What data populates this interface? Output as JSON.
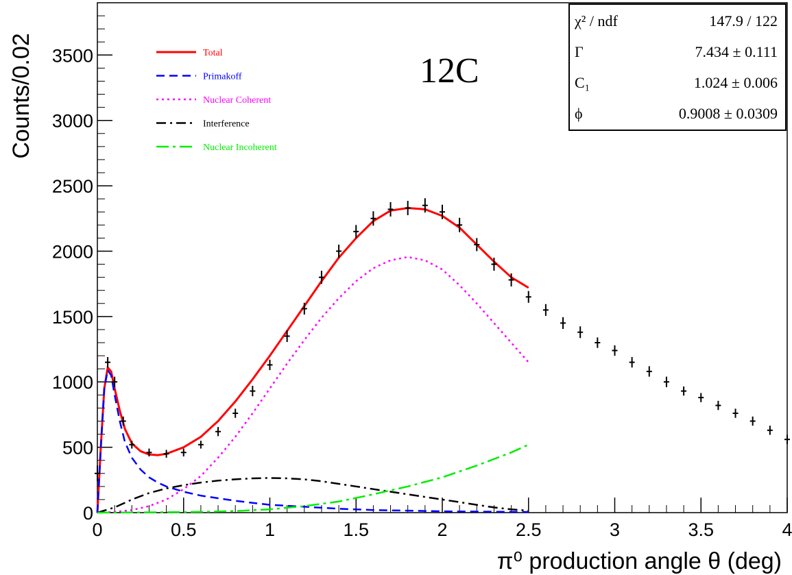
{
  "chart_data": {
    "type": "line",
    "xlabel": "π⁰ production angle θ (deg)",
    "ylabel": "Counts/0.02",
    "xlim": [
      0,
      4
    ],
    "ylim": [
      0,
      3900
    ],
    "x_ticks": [
      "0",
      "0.5",
      "1",
      "1.5",
      "2",
      "2.5",
      "3",
      "3.5",
      "4"
    ],
    "y_ticks": [
      "0",
      "500",
      "1000",
      "1500",
      "2000",
      "2500",
      "3000",
      "3500"
    ],
    "annotation": "12C",
    "legend_position": "top-left",
    "stats": [
      {
        "label": "χ² / ndf",
        "value": "147.9 / 122"
      },
      {
        "label": "Γ",
        "value": "7.434 ± 0.111"
      },
      {
        "label": "C₁",
        "value": "1.024 ± 0.006"
      },
      {
        "label": "ϕ",
        "value": "0.9008 ± 0.0309"
      }
    ],
    "data_points": {
      "name": "Data",
      "x": [
        0.0,
        0.06,
        0.1,
        0.15,
        0.2,
        0.3,
        0.4,
        0.5,
        0.6,
        0.7,
        0.8,
        0.9,
        1.0,
        1.1,
        1.2,
        1.3,
        1.4,
        1.5,
        1.6,
        1.7,
        1.8,
        1.9,
        2.0,
        2.1,
        2.2,
        2.3,
        2.4,
        2.5,
        2.6,
        2.7,
        2.8,
        2.9,
        3.0,
        3.1,
        3.2,
        3.3,
        3.4,
        3.5,
        3.6,
        3.7,
        3.8,
        3.9,
        4.0
      ],
      "y": [
        300,
        1150,
        1000,
        700,
        520,
        460,
        450,
        460,
        520,
        620,
        760,
        930,
        1130,
        1350,
        1560,
        1800,
        2000,
        2150,
        2250,
        2320,
        2330,
        2350,
        2300,
        2200,
        2050,
        1900,
        1780,
        1650,
        1550,
        1450,
        1380,
        1300,
        1240,
        1150,
        1080,
        1000,
        930,
        880,
        820,
        760,
        700,
        630,
        560
      ],
      "err": [
        60,
        40,
        40,
        35,
        30,
        30,
        30,
        30,
        30,
        35,
        35,
        40,
        40,
        45,
        45,
        50,
        50,
        50,
        55,
        55,
        55,
        55,
        55,
        55,
        50,
        50,
        50,
        45,
        45,
        45,
        45,
        40,
        40,
        40,
        40,
        40,
        35,
        35,
        35,
        35,
        35,
        35,
        35
      ]
    },
    "series": [
      {
        "name": "Total",
        "color": "#ff0000",
        "dash": "solid",
        "x": [
          0.0,
          0.02,
          0.04,
          0.06,
          0.08,
          0.1,
          0.13,
          0.16,
          0.2,
          0.25,
          0.3,
          0.35,
          0.4,
          0.5,
          0.6,
          0.7,
          0.8,
          0.9,
          1.0,
          1.1,
          1.2,
          1.3,
          1.4,
          1.5,
          1.6,
          1.7,
          1.8,
          1.9,
          2.0,
          2.1,
          2.2,
          2.3,
          2.4,
          2.5
        ],
        "y": [
          0,
          500,
          950,
          1110,
          1080,
          950,
          780,
          640,
          530,
          470,
          445,
          440,
          450,
          500,
          580,
          700,
          850,
          1020,
          1200,
          1390,
          1580,
          1770,
          1950,
          2100,
          2230,
          2310,
          2330,
          2320,
          2270,
          2180,
          2050,
          1920,
          1800,
          1720
        ]
      },
      {
        "name": "Primakoff",
        "color": "#0000ff",
        "dash": "dashed",
        "x": [
          0.0,
          0.02,
          0.04,
          0.06,
          0.08,
          0.1,
          0.13,
          0.16,
          0.2,
          0.25,
          0.3,
          0.35,
          0.4,
          0.5,
          0.6,
          0.7,
          0.8,
          0.9,
          1.0,
          1.2,
          1.4,
          1.6,
          1.8,
          2.0,
          2.2,
          2.5
        ],
        "y": [
          0,
          500,
          950,
          1090,
          1050,
          900,
          700,
          540,
          420,
          330,
          270,
          230,
          200,
          160,
          130,
          110,
          90,
          75,
          60,
          45,
          30,
          20,
          15,
          10,
          8,
          5
        ]
      },
      {
        "name": "Nuclear Coherent",
        "color": "#ff00ff",
        "dash": "dotted",
        "x": [
          0.0,
          0.1,
          0.2,
          0.3,
          0.4,
          0.5,
          0.6,
          0.7,
          0.8,
          0.9,
          1.0,
          1.1,
          1.2,
          1.3,
          1.4,
          1.5,
          1.6,
          1.7,
          1.8,
          1.9,
          2.0,
          2.1,
          2.2,
          2.3,
          2.4,
          2.5
        ],
        "y": [
          0,
          5,
          20,
          50,
          100,
          180,
          280,
          420,
          580,
          760,
          950,
          1140,
          1320,
          1490,
          1640,
          1770,
          1870,
          1930,
          1955,
          1930,
          1860,
          1740,
          1600,
          1450,
          1300,
          1150
        ]
      },
      {
        "name": "Interference",
        "color": "#000000",
        "dash": "dashdot",
        "x": [
          0.0,
          0.1,
          0.2,
          0.3,
          0.4,
          0.5,
          0.6,
          0.7,
          0.8,
          0.9,
          1.0,
          1.1,
          1.2,
          1.3,
          1.4,
          1.5,
          1.6,
          1.7,
          1.8,
          1.9,
          2.0,
          2.1,
          2.2,
          2.3,
          2.4,
          2.5
        ],
        "y": [
          0,
          40,
          100,
          150,
          185,
          210,
          230,
          245,
          255,
          262,
          265,
          262,
          255,
          240,
          220,
          200,
          180,
          160,
          140,
          120,
          100,
          80,
          60,
          40,
          25,
          15
        ]
      },
      {
        "name": "Nuclear Incoherent",
        "color": "#00ee00",
        "dash": "dashdotlong",
        "x": [
          0.0,
          0.2,
          0.4,
          0.6,
          0.8,
          1.0,
          1.2,
          1.4,
          1.6,
          1.8,
          2.0,
          2.2,
          2.4,
          2.5
        ],
        "y": [
          0,
          1,
          3,
          6,
          12,
          25,
          50,
          85,
          140,
          200,
          270,
          360,
          460,
          520
        ]
      }
    ]
  }
}
